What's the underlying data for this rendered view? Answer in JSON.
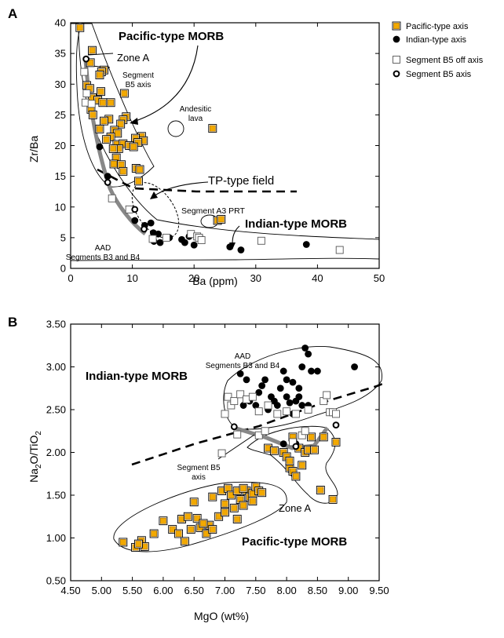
{
  "chart_data": [
    {
      "panel_label": "A",
      "type": "scatter",
      "xlabel": "Ba (ppm)",
      "ylabel": "Zr/Ba",
      "xlim": [
        0,
        50
      ],
      "ylim": [
        0,
        40
      ],
      "xticks": [
        "0",
        "10",
        "20",
        "30",
        "40",
        "50"
      ],
      "yticks": [
        "0",
        "5",
        "10",
        "15",
        "20",
        "25",
        "30",
        "35",
        "40"
      ],
      "legend": {
        "placement": "top-right",
        "entries": [
          "Pacific-type axis",
          "Indian-type axis",
          "Segment B5 off axis",
          "Segment B5 axis"
        ]
      },
      "annotations": {
        "pacific_morb": "Pacific-type MORB",
        "zone_a": "Zone A",
        "segment_b5_line1": "Segment",
        "segment_b5_line2": "B5 axis",
        "andesitic_line1": "Andesitic",
        "andesitic_line2": "lava",
        "tp_field": "TP-type field",
        "segment_a3": "Segment A3 PRT",
        "indian_morb": "Indian-type MORB",
        "aad_line1": "AAD",
        "aad_line2": "Segments B3 and B4"
      },
      "series": [
        {
          "name": "Pacific-type axis",
          "points": [
            [
              1.5,
              39.2
            ],
            [
              3.5,
              35.5
            ],
            [
              3.2,
              33.5
            ],
            [
              5.4,
              32.3
            ],
            [
              5.0,
              32.0
            ],
            [
              4.7,
              31.5
            ],
            [
              2.6,
              29.8
            ],
            [
              3.1,
              29.3
            ],
            [
              4.9,
              28.8
            ],
            [
              8.7,
              28.5
            ],
            [
              3.5,
              27.8
            ],
            [
              4.4,
              27.4
            ],
            [
              5.2,
              27.0
            ],
            [
              6.5,
              27.0
            ],
            [
              3.3,
              25.9
            ],
            [
              3.6,
              25.0
            ],
            [
              9.0,
              24.7
            ],
            [
              6.2,
              24.3
            ],
            [
              8.5,
              24.2
            ],
            [
              5.4,
              24.0
            ],
            [
              8.1,
              23.5
            ],
            [
              4.7,
              22.7
            ],
            [
              7.1,
              22.5
            ],
            [
              7.6,
              22.0
            ],
            [
              6.5,
              21.4
            ],
            [
              11.5,
              21.5
            ],
            [
              5.8,
              21.0
            ],
            [
              10.5,
              21.2
            ],
            [
              11.8,
              20.8
            ],
            [
              10.9,
              20.5
            ],
            [
              7.5,
              20.2
            ],
            [
              8.5,
              20.3
            ],
            [
              9.5,
              20.0
            ],
            [
              7.8,
              19.5
            ],
            [
              10.2,
              19.8
            ],
            [
              6.9,
              19.5
            ],
            [
              7.4,
              18.0
            ],
            [
              7.0,
              17.0
            ],
            [
              8.2,
              16.9
            ],
            [
              10.6,
              16.3
            ],
            [
              11.2,
              16.1
            ],
            [
              8.5,
              15.8
            ],
            [
              11.0,
              14.2
            ],
            [
              23.0,
              22.8
            ],
            [
              23.8,
              7.8
            ],
            [
              24.4,
              8.0
            ]
          ]
        },
        {
          "name": "Indian-type axis",
          "points": [
            [
              4.7,
              19.8
            ],
            [
              6.0,
              15.0
            ],
            [
              10.4,
              7.8
            ],
            [
              12.0,
              7.0
            ],
            [
              13.0,
              7.4
            ],
            [
              13.4,
              5.8
            ],
            [
              14.2,
              5.6
            ],
            [
              16.0,
              5.0
            ],
            [
              13.5,
              4.4
            ],
            [
              14.5,
              4.2
            ],
            [
              18.0,
              4.7
            ],
            [
              18.5,
              4.2
            ],
            [
              20.0,
              3.8
            ],
            [
              19.2,
              5.2
            ],
            [
              21.0,
              5.0
            ],
            [
              25.8,
              3.5
            ],
            [
              27.6,
              3.0
            ],
            [
              38.2,
              3.9
            ]
          ]
        },
        {
          "name": "Segment B5 off axis",
          "points": [
            [
              2.2,
              32.0
            ],
            [
              2.6,
              28.5
            ],
            [
              2.4,
              27.0
            ],
            [
              3.4,
              26.8
            ],
            [
              6.7,
              11.4
            ],
            [
              9.5,
              9.6
            ],
            [
              13.3,
              4.8
            ],
            [
              15.5,
              5.0
            ],
            [
              19.5,
              5.6
            ],
            [
              20.5,
              5.2
            ],
            [
              20.8,
              5.0
            ],
            [
              21.2,
              4.6
            ],
            [
              30.9,
              4.5
            ],
            [
              43.6,
              3.0
            ]
          ]
        },
        {
          "name": "Segment B5 axis",
          "points": [
            [
              2.5,
              34.1
            ],
            [
              6.0,
              14.0
            ],
            [
              10.4,
              9.6
            ],
            [
              11.9,
              6.4
            ]
          ]
        }
      ]
    },
    {
      "panel_label": "B",
      "type": "scatter",
      "xlabel": "MgO (wt%)",
      "ylabel_main": "Na",
      "ylabel_sub1": "2",
      "ylabel_mid": "O/TiO",
      "ylabel_sub2": "2",
      "xlim": [
        4.5,
        9.5
      ],
      "ylim": [
        0.5,
        3.5
      ],
      "xticks": [
        "4.50",
        "5.00",
        "5.50",
        "6.00",
        "6.50",
        "7.00",
        "7.50",
        "8.00",
        "8.50",
        "9.00",
        "9.50"
      ],
      "yticks": [
        "0.50",
        "1.00",
        "1.50",
        "2.00",
        "2.50",
        "3.00",
        "3.50"
      ],
      "annotations": {
        "aad_line1": "AAD",
        "aad_line2": "Segments B3 and B4",
        "indian_morb": "Indian-type MORB",
        "segment_b5_line1": "Segment B5",
        "segment_b5_line2": "axis",
        "zone_a": "Zone A",
        "pacific_morb": "Pacific-type MORB"
      },
      "series": [
        {
          "name": "Pacific-type axis",
          "points": [
            [
              5.35,
              0.95
            ],
            [
              5.55,
              0.89
            ],
            [
              5.65,
              0.97
            ],
            [
              5.7,
              0.9
            ],
            [
              5.6,
              0.93
            ],
            [
              5.85,
              1.05
            ],
            [
              6.0,
              1.2
            ],
            [
              6.15,
              1.1
            ],
            [
              6.25,
              1.05
            ],
            [
              6.3,
              1.22
            ],
            [
              6.35,
              0.96
            ],
            [
              6.4,
              1.25
            ],
            [
              6.45,
              1.1
            ],
            [
              6.55,
              1.23
            ],
            [
              6.6,
              1.12
            ],
            [
              6.7,
              1.05
            ],
            [
              6.75,
              1.15
            ],
            [
              6.8,
              1.1
            ],
            [
              6.65,
              1.17
            ],
            [
              6.9,
              1.25
            ],
            [
              6.95,
              1.55
            ],
            [
              7.0,
              1.4
            ],
            [
              7.05,
              1.58
            ],
            [
              7.1,
              1.5
            ],
            [
              7.15,
              1.35
            ],
            [
              7.2,
              1.55
            ],
            [
              7.25,
              1.45
            ],
            [
              7.3,
              1.38
            ],
            [
              7.35,
              1.55
            ],
            [
              7.4,
              1.48
            ],
            [
              7.45,
              1.52
            ],
            [
              7.5,
              1.6
            ],
            [
              7.55,
              1.55
            ],
            [
              7.6,
              1.53
            ],
            [
              6.5,
              1.42
            ],
            [
              7.0,
              1.3
            ],
            [
              7.2,
              1.22
            ],
            [
              6.8,
              1.48
            ],
            [
              7.3,
              1.58
            ],
            [
              7.45,
              1.43
            ],
            [
              7.7,
              2.05
            ],
            [
              7.8,
              2.02
            ],
            [
              7.95,
              2.0
            ],
            [
              8.0,
              1.95
            ],
            [
              8.05,
              1.82
            ],
            [
              8.05,
              1.9
            ],
            [
              8.1,
              1.78
            ],
            [
              8.15,
              1.72
            ],
            [
              8.2,
              2.05
            ],
            [
              8.25,
              1.85
            ],
            [
              8.3,
              2.0
            ],
            [
              8.35,
              2.03
            ],
            [
              8.45,
              2.03
            ],
            [
              8.4,
              2.18
            ],
            [
              8.6,
              2.18
            ],
            [
              8.55,
              1.56
            ],
            [
              8.75,
              1.45
            ],
            [
              8.8,
              2.12
            ],
            [
              8.1,
              2.18
            ]
          ]
        },
        {
          "name": "Indian-type axis",
          "points": [
            [
              7.25,
              2.92
            ],
            [
              7.35,
              2.85
            ],
            [
              7.55,
              2.7
            ],
            [
              7.65,
              2.85
            ],
            [
              7.75,
              2.65
            ],
            [
              7.8,
              2.6
            ],
            [
              7.9,
              2.75
            ],
            [
              7.95,
              2.95
            ],
            [
              8.0,
              2.65
            ],
            [
              8.05,
              2.58
            ],
            [
              8.1,
              2.82
            ],
            [
              8.15,
              2.6
            ],
            [
              8.2,
              2.75
            ],
            [
              8.25,
              3.0
            ],
            [
              8.3,
              3.22
            ],
            [
              8.35,
              3.15
            ],
            [
              8.4,
              2.95
            ],
            [
              8.35,
              2.55
            ],
            [
              8.5,
              2.95
            ],
            [
              7.4,
              2.6
            ],
            [
              7.5,
              2.55
            ],
            [
              7.6,
              2.78
            ],
            [
              7.7,
              2.5
            ],
            [
              7.85,
              2.55
            ],
            [
              8.0,
              2.85
            ],
            [
              8.2,
              2.65
            ],
            [
              8.1,
              2.45
            ],
            [
              8.25,
              2.55
            ],
            [
              7.3,
              2.55
            ],
            [
              9.1,
              3.0
            ],
            [
              7.95,
              2.1
            ],
            [
              8.15,
              2.1
            ]
          ]
        },
        {
          "name": "Segment B5 off axis",
          "points": [
            [
              7.0,
              2.45
            ],
            [
              7.05,
              2.65
            ],
            [
              7.1,
              2.55
            ],
            [
              7.15,
              2.6
            ],
            [
              7.25,
              2.68
            ],
            [
              7.35,
              2.62
            ],
            [
              7.45,
              2.65
            ],
            [
              7.55,
              2.48
            ],
            [
              7.7,
              2.55
            ],
            [
              7.85,
              2.45
            ],
            [
              8.0,
              2.48
            ],
            [
              8.15,
              2.45
            ],
            [
              8.35,
              2.5
            ],
            [
              8.6,
              2.6
            ],
            [
              8.65,
              2.67
            ],
            [
              8.7,
              2.47
            ],
            [
              8.75,
              2.47
            ],
            [
              8.8,
              2.45
            ],
            [
              7.2,
              2.21
            ],
            [
              7.55,
              2.2
            ],
            [
              8.25,
              2.2
            ],
            [
              8.3,
              2.25
            ],
            [
              8.1,
              2.12
            ],
            [
              6.95,
              1.99
            ],
            [
              7.65,
              2.25
            ]
          ]
        },
        {
          "name": "Segment B5 axis",
          "points": [
            [
              7.15,
              2.3
            ],
            [
              8.15,
              2.07
            ],
            [
              8.8,
              2.32
            ]
          ]
        }
      ]
    }
  ]
}
